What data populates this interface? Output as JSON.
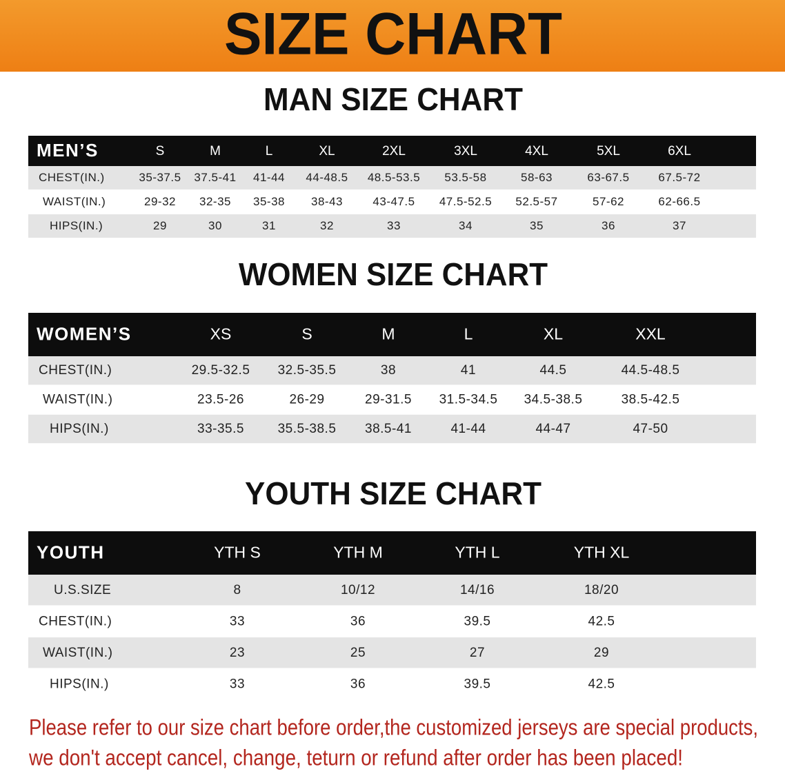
{
  "header": {
    "title": "SIZE CHART"
  },
  "sections": [
    {
      "title": "MAN SIZE CHART",
      "columns": [
        "MEN’S",
        "S",
        "M",
        "L",
        "XL",
        "2XL",
        "3XL",
        "4XL",
        "5XL",
        "6XL"
      ],
      "rows": [
        [
          "CHEST(IN.)",
          "35-37.5",
          "37.5-41",
          "41-44",
          "44-48.5",
          "48.5-53.5",
          "53.5-58",
          "58-63",
          "63-67.5",
          "67.5-72"
        ],
        [
          "WAIST(IN.)",
          "29-32",
          "32-35",
          "35-38",
          "38-43",
          "43-47.5",
          "47.5-52.5",
          "52.5-57",
          "57-62",
          "62-66.5"
        ],
        [
          "HIPS(IN.)",
          "29",
          "30",
          "31",
          "32",
          "33",
          "34",
          "35",
          "36",
          "37"
        ]
      ]
    },
    {
      "title": "WOMEN SIZE CHART",
      "columns": [
        "WOMEN’S",
        "XS",
        "S",
        "M",
        "L",
        "XL",
        "XXL"
      ],
      "rows": [
        [
          "CHEST(IN.)",
          "29.5-32.5",
          "32.5-35.5",
          "38",
          "41",
          "44.5",
          "44.5-48.5"
        ],
        [
          "WAIST(IN.)",
          "23.5-26",
          "26-29",
          "29-31.5",
          "31.5-34.5",
          "34.5-38.5",
          "38.5-42.5"
        ],
        [
          "HIPS(IN.)",
          "33-35.5",
          "35.5-38.5",
          "38.5-41",
          "41-44",
          "44-47",
          "47-50"
        ]
      ]
    },
    {
      "title": "YOUTH SIZE CHART",
      "columns": [
        "YOUTH",
        "YTH S",
        "YTH M",
        "YTH L",
        "YTH XL"
      ],
      "rows": [
        [
          "U.S.SIZE",
          "8",
          "10/12",
          "14/16",
          "18/20"
        ],
        [
          "CHEST(IN.)",
          "33",
          "36",
          "39.5",
          "42.5"
        ],
        [
          "WAIST(IN.)",
          "23",
          "25",
          "27",
          "29"
        ],
        [
          "HIPS(IN.)",
          "33",
          "36",
          "39.5",
          "42.5"
        ]
      ]
    }
  ],
  "footer": {
    "lines": [
      "Please refer to our size chart before order,the customized jerseys are special products,",
      "we don't accept cancel, change, teturn or refund after order has been placed!"
    ]
  }
}
